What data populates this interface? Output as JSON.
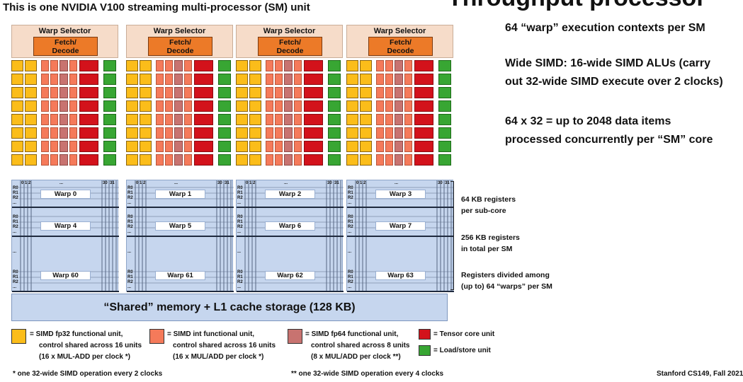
{
  "title_top": "This is one NVIDIA V100 streaming multi-processor (SM) unit",
  "big_title_residue": "Throughput processor",
  "sub_cores": [
    {
      "warp_selector": "Warp Selector",
      "fetch_decode": [
        "Fetch/",
        "Decode"
      ],
      "warp_labels": [
        "Warp 0",
        "Warp 4",
        "Warp 60"
      ]
    },
    {
      "warp_selector": "Warp Selector",
      "fetch_decode": [
        "Fetch/",
        "Decode"
      ],
      "warp_labels": [
        "Warp 1",
        "Warp 5",
        "Warp 61"
      ]
    },
    {
      "warp_selector": "Warp Selector",
      "fetch_decode": [
        "Fetch/",
        "Decode"
      ],
      "warp_labels": [
        "Warp 2",
        "Warp 6",
        "Warp 62"
      ]
    },
    {
      "warp_selector": "Warp Selector",
      "fetch_decode": [
        "Fetch/",
        "Decode"
      ],
      "warp_labels": [
        "Warp 3",
        "Warp 7",
        "Warp 63"
      ]
    }
  ],
  "register_labels": [
    "R0",
    "R1",
    "R2",
    "..."
  ],
  "thread_labels": [
    "0",
    "1",
    "2",
    "...",
    "30",
    "31"
  ],
  "ellipsis": "...",
  "shared_memory": "“Shared” memory + L1 cache storage (128 KB)",
  "right_notes": [
    "64 “warp” execution contexts per SM",
    "Wide SIMD: 16-wide SIMD ALUs (carry",
    "out 32-wide SIMD execute over 2 clocks)",
    "64 x 32 = up to 2048 data items",
    "processed concurrently per “SM” core"
  ],
  "register_notes": [
    "64 KB registers",
    "per sub-core",
    "256 KB registers",
    "in total per SM",
    "Registers divided among",
    "(up to) 64 “warps” per SM"
  ],
  "legend": {
    "fp32": [
      "= SIMD fp32 functional unit,",
      "control shared across 16 units",
      "(16 x MUL-ADD per clock *)"
    ],
    "int": [
      "= SIMD int functional unit,",
      "control shared across 16 units",
      "(16 x MUL/ADD per clock *)"
    ],
    "fp64": [
      "= SIMD fp64 functional unit,",
      "control shared across 8 units",
      "(8 x MUL/ADD per clock **)"
    ],
    "tensor": "= Tensor core unit",
    "loadstore": "= Load/store unit"
  },
  "footnotes": {
    "single": "* one 32-wide SIMD operation every 2 clocks",
    "double": "** one 32-wide SIMD operation every 4 clocks",
    "credit": "Stanford CS149, Fall 2021"
  },
  "colors": {
    "fp32": "#fbbd1a",
    "int": "#f57a5a",
    "fp64": "#c87370",
    "tensor": "#d3121b",
    "loadstore": "#38a633",
    "fetch_decode": "#ec7a28",
    "warp_selector": "#f6dcc9",
    "register_file": "#c6d6ee"
  }
}
